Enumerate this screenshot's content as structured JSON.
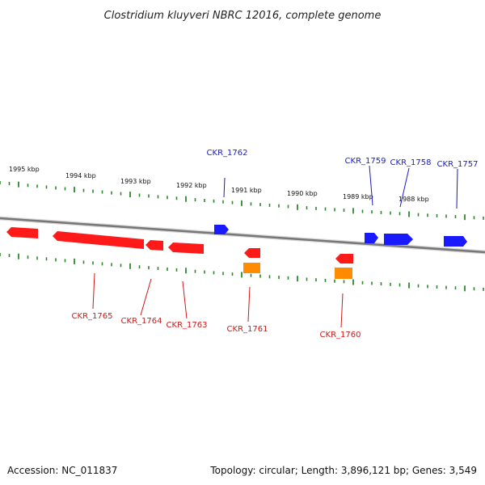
{
  "title": "Clostridium kluyveri NBRC 12016, complete genome",
  "accession": "Accession: NC_011837",
  "summary": "Topology: circular; Length: 3,896,121 bp; Genes: 3,549",
  "scale_labels": [
    "1995 kbp",
    "1994 kbp",
    "1993 kbp",
    "1992 kbp",
    "1991 kbp",
    "1990 kbp",
    "1989 kbp",
    "1988 kbp"
  ],
  "genes_forward": [
    "CKR_1762",
    "CKR_1759",
    "CKR_1758",
    "CKR_1757"
  ],
  "genes_reverse": [
    "CKR_1765",
    "CKR_1764",
    "CKR_1763",
    "CKR_1761",
    "CKR_1760"
  ],
  "colors": {
    "forward_gene": "#1a1aff",
    "reverse_gene": "#ff1a1a",
    "rna_feature": "#ff8c00",
    "backbone": "#888888",
    "tick": "#2a8a2a",
    "forward_label": "#1a1acc",
    "reverse_label": "#cc1a1a"
  }
}
